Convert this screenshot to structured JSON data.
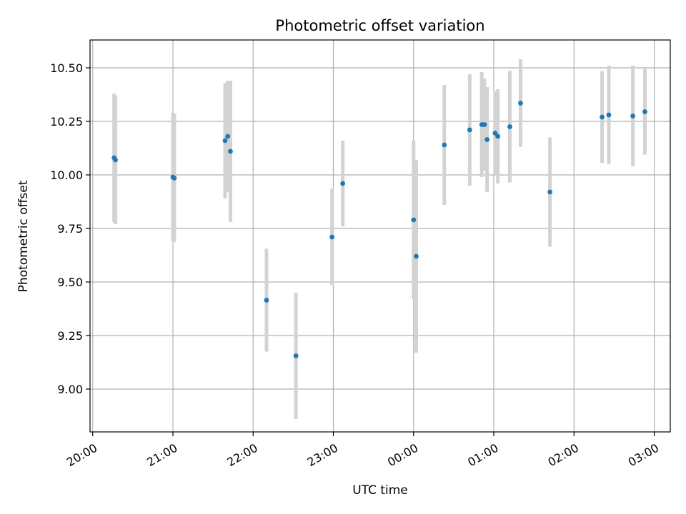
{
  "chart_data": {
    "type": "scatter",
    "title": "Photometric offset variation",
    "xlabel": "UTC time",
    "ylabel": "Photometric offset",
    "x_unit": "UTC time (hours)",
    "xlim": [
      "19:58",
      "03:12"
    ],
    "ylim": [
      8.8,
      10.63
    ],
    "x_ticks": [
      "20:00",
      "21:00",
      "22:00",
      "23:00",
      "00:00",
      "01:00",
      "02:00",
      "03:00"
    ],
    "y_ticks": [
      "9.00",
      "9.25",
      "9.50",
      "9.75",
      "10.00",
      "10.25",
      "10.50"
    ],
    "grid": true,
    "point_color": "#1f77b4",
    "errorbar_color": "#d3d3d3",
    "series": [
      {
        "points": [
          {
            "x": "20:16",
            "y": 10.08,
            "err": 0.3
          },
          {
            "x": "20:17",
            "y": 10.07,
            "err": 0.3
          },
          {
            "x": "21:00",
            "y": 9.99,
            "err": 0.3
          },
          {
            "x": "21:01",
            "y": 9.985,
            "err": 0.3
          },
          {
            "x": "21:39",
            "y": 10.16,
            "err": 0.27
          },
          {
            "x": "21:41",
            "y": 10.18,
            "err": 0.26
          },
          {
            "x": "21:43",
            "y": 10.11,
            "err": 0.33
          },
          {
            "x": "22:10",
            "y": 9.415,
            "err": 0.24
          },
          {
            "x": "22:32",
            "y": 9.155,
            "err": 0.295
          },
          {
            "x": "22:59",
            "y": 9.71,
            "err": 0.225
          },
          {
            "x": "23:07",
            "y": 9.96,
            "err": 0.2
          },
          {
            "x": "00:00",
            "y": 9.79,
            "err": 0.37
          },
          {
            "x": "00:02",
            "y": 9.62,
            "err": 0.45
          },
          {
            "x": "00:23",
            "y": 10.14,
            "err": 0.28
          },
          {
            "x": "00:42",
            "y": 10.21,
            "err": 0.26
          },
          {
            "x": "00:51",
            "y": 10.235,
            "err": 0.245
          },
          {
            "x": "00:53",
            "y": 10.235,
            "err": 0.215
          },
          {
            "x": "00:55",
            "y": 10.165,
            "err": 0.245
          },
          {
            "x": "01:01",
            "y": 10.195,
            "err": 0.195
          },
          {
            "x": "01:03",
            "y": 10.18,
            "err": 0.22
          },
          {
            "x": "01:12",
            "y": 10.225,
            "err": 0.26
          },
          {
            "x": "01:20",
            "y": 10.335,
            "err": 0.205
          },
          {
            "x": "01:42",
            "y": 9.92,
            "err": 0.255
          },
          {
            "x": "02:21",
            "y": 10.27,
            "err": 0.215
          },
          {
            "x": "02:26",
            "y": 10.28,
            "err": 0.23
          },
          {
            "x": "02:44",
            "y": 10.275,
            "err": 0.235
          },
          {
            "x": "02:53",
            "y": 10.295,
            "err": 0.2
          }
        ]
      }
    ]
  }
}
